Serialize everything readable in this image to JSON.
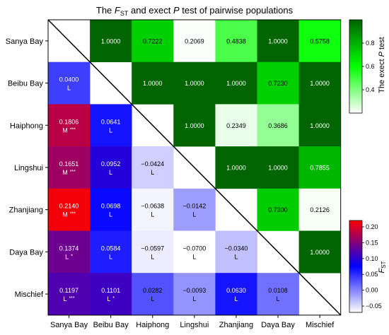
{
  "chart_data": {
    "type": "heatmap",
    "title": {
      "before": "The ",
      "F": "F",
      "F_sub": "ST",
      "middle": " and exect ",
      "P": "P",
      "after": " test of pairwise populations"
    },
    "populations": [
      "Sanya Bay",
      "Beibu Bay",
      "Haiphong",
      "Lingshui",
      "Zhanjiang",
      "Daya Bay",
      "Mischief"
    ],
    "upper_ptest": [
      {
        "row": 0,
        "col": 1,
        "value": 1.0,
        "label": "1.0000"
      },
      {
        "row": 0,
        "col": 2,
        "value": 0.7222,
        "label": "0.7222"
      },
      {
        "row": 0,
        "col": 3,
        "value": 0.2069,
        "label": "0.2069"
      },
      {
        "row": 0,
        "col": 4,
        "value": 0.4838,
        "label": "0.4838"
      },
      {
        "row": 0,
        "col": 5,
        "value": 1.0,
        "label": "1.0000"
      },
      {
        "row": 0,
        "col": 6,
        "value": 0.5758,
        "label": "0.5758"
      },
      {
        "row": 1,
        "col": 2,
        "value": 1.0,
        "label": "1.0000"
      },
      {
        "row": 1,
        "col": 3,
        "value": 1.0,
        "label": "1.0000"
      },
      {
        "row": 1,
        "col": 4,
        "value": 1.0,
        "label": "1.0000"
      },
      {
        "row": 1,
        "col": 5,
        "value": 0.723,
        "label": "0.7230"
      },
      {
        "row": 1,
        "col": 6,
        "value": 1.0,
        "label": "1.0000"
      },
      {
        "row": 2,
        "col": 3,
        "value": 1.0,
        "label": "1.0000"
      },
      {
        "row": 2,
        "col": 4,
        "value": 0.2349,
        "label": "0.2349"
      },
      {
        "row": 2,
        "col": 5,
        "value": 0.3686,
        "label": "0.3686"
      },
      {
        "row": 2,
        "col": 6,
        "value": 1.0,
        "label": "1.0000"
      },
      {
        "row": 3,
        "col": 4,
        "value": 1.0,
        "label": "1.0000"
      },
      {
        "row": 3,
        "col": 5,
        "value": 1.0,
        "label": "1.0000"
      },
      {
        "row": 3,
        "col": 6,
        "value": 0.7855,
        "label": "0.7855"
      },
      {
        "row": 4,
        "col": 5,
        "value": 0.73,
        "label": "0.7300"
      },
      {
        "row": 4,
        "col": 6,
        "value": 0.2126,
        "label": "0.2126"
      },
      {
        "row": 5,
        "col": 6,
        "value": 1.0,
        "label": "1.0000"
      }
    ],
    "lower_fst": [
      {
        "row": 1,
        "col": 0,
        "value": 0.04,
        "label": "0.0400",
        "category": "L",
        "signif": ""
      },
      {
        "row": 2,
        "col": 0,
        "value": 0.1806,
        "label": "0.1806",
        "category": "M",
        "signif": "***"
      },
      {
        "row": 2,
        "col": 1,
        "value": 0.0641,
        "label": "0.0641",
        "category": "L",
        "signif": ""
      },
      {
        "row": 3,
        "col": 0,
        "value": 0.1651,
        "label": "0.1651",
        "category": "M",
        "signif": "***"
      },
      {
        "row": 3,
        "col": 1,
        "value": 0.0952,
        "label": "0.0952",
        "category": "L",
        "signif": ""
      },
      {
        "row": 3,
        "col": 2,
        "value": -0.0424,
        "label": "−0.0424",
        "category": "L",
        "signif": ""
      },
      {
        "row": 4,
        "col": 0,
        "value": 0.214,
        "label": "0.2140",
        "category": "M",
        "signif": "***"
      },
      {
        "row": 4,
        "col": 1,
        "value": 0.0698,
        "label": "0.0698",
        "category": "L",
        "signif": ""
      },
      {
        "row": 4,
        "col": 2,
        "value": -0.0638,
        "label": "−0.0638",
        "category": "L",
        "signif": ""
      },
      {
        "row": 4,
        "col": 3,
        "value": -0.0142,
        "label": "−0.0142",
        "category": "L",
        "signif": ""
      },
      {
        "row": 5,
        "col": 0,
        "value": 0.1374,
        "label": "0.1374",
        "category": "L",
        "signif": "*"
      },
      {
        "row": 5,
        "col": 1,
        "value": 0.0584,
        "label": "0.0584",
        "category": "L",
        "signif": ""
      },
      {
        "row": 5,
        "col": 2,
        "value": -0.0597,
        "label": "−0.0597",
        "category": "L",
        "signif": ""
      },
      {
        "row": 5,
        "col": 3,
        "value": -0.07,
        "label": "−0.0700",
        "category": "L",
        "signif": ""
      },
      {
        "row": 5,
        "col": 4,
        "value": -0.034,
        "label": "−0.0340",
        "category": "L",
        "signif": ""
      },
      {
        "row": 6,
        "col": 0,
        "value": 0.1197,
        "label": "0.1197",
        "category": "L",
        "signif": "***"
      },
      {
        "row": 6,
        "col": 1,
        "value": 0.1101,
        "label": "0.1101",
        "category": "L",
        "signif": "*"
      },
      {
        "row": 6,
        "col": 2,
        "value": 0.0282,
        "label": "0.0282",
        "category": "L",
        "signif": ""
      },
      {
        "row": 6,
        "col": 3,
        "value": -0.0093,
        "label": "−0.0093",
        "category": "L",
        "signif": ""
      },
      {
        "row": 6,
        "col": 4,
        "value": 0.063,
        "label": "0.0630",
        "category": "L",
        "signif": ""
      },
      {
        "row": 6,
        "col": 5,
        "value": 0.0108,
        "label": "0.0108",
        "category": "L",
        "signif": ""
      }
    ],
    "colorbar_ptest": {
      "label": "The exect P test",
      "label_prefix": "The exect ",
      "label_italic": "P",
      "label_suffix": " test",
      "range": [
        0.2,
        1.0
      ],
      "ticks": [
        0.4,
        0.6,
        0.8
      ],
      "tick_labels": [
        "0.4",
        "0.6",
        "0.8"
      ],
      "colors": [
        "#ffffff",
        "#00ff00",
        "#006400"
      ]
    },
    "colorbar_fst": {
      "label_F": "F",
      "label_sub": "ST",
      "range": [
        -0.07,
        0.22
      ],
      "ticks": [
        -0.05,
        0.0,
        0.05,
        0.1,
        0.15,
        0.2
      ],
      "tick_labels": [
        "−0.05",
        "0.00",
        "0.05",
        "0.10",
        "0.15",
        "0.20"
      ],
      "colors": [
        "#ffffff",
        "#0000ff",
        "#ff0000"
      ]
    }
  }
}
